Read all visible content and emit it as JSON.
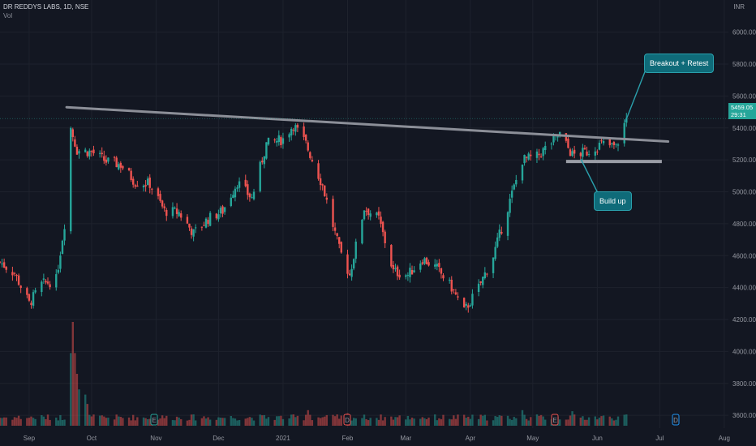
{
  "header": {
    "symbol": "DR REDDYS LABS, 1D, NSE",
    "indicator": "Vol",
    "currency": "INR"
  },
  "current_price": {
    "value": "5459.05",
    "countdown": "29:31"
  },
  "annotations": {
    "breakout": "Breakout + Retest",
    "buildup": "Build up"
  },
  "event_markers": [
    "E",
    "D",
    "E",
    "D"
  ],
  "colors": {
    "up": "#26a69a",
    "down": "#ef5350",
    "background": "#131722",
    "trendline": "#8c8f98",
    "callout": "#0f6b79"
  },
  "chart_data": {
    "type": "candlestick",
    "title": "",
    "xlabel": "",
    "ylabel": "",
    "ylim": [
      3550,
      6100
    ],
    "y_ticks": [
      "6000.00",
      "5800.00",
      "5600.00",
      "5400.00",
      "5200.00",
      "5000.00",
      "4800.00",
      "4600.00",
      "4400.00",
      "4200.00",
      "4000.00",
      "3800.00",
      "3600.00"
    ],
    "x_ticks": [
      "Sep",
      "Oct",
      "Nov",
      "Dec",
      "2021",
      "Feb",
      "Mar",
      "Apr",
      "May",
      "Jun",
      "Jul",
      "Aug"
    ],
    "x_tick_dates": [
      "2020-09-01",
      "2020-10-01",
      "2020-11-01",
      "2020-12-01",
      "2021-01-01",
      "2021-02-01",
      "2021-03-01",
      "2021-04-01",
      "2021-05-01",
      "2021-06-01",
      "2021-07-01",
      "2021-08-01"
    ],
    "x_range": [
      "2020-08-18",
      "2021-08-03"
    ],
    "close_anchors": [
      [
        "2020-08-18",
        4560
      ],
      [
        "2020-08-25",
        4490
      ],
      [
        "2020-09-01",
        4300
      ],
      [
        "2020-09-07",
        4420
      ],
      [
        "2020-09-14",
        4450
      ],
      [
        "2020-09-18",
        4800
      ],
      [
        "2020-09-21",
        5400
      ],
      [
        "2020-09-24",
        5260
      ],
      [
        "2020-10-01",
        5250
      ],
      [
        "2020-10-08",
        5190
      ],
      [
        "2020-10-15",
        5170
      ],
      [
        "2020-10-22",
        5060
      ],
      [
        "2020-10-29",
        5050
      ],
      [
        "2020-11-05",
        4880
      ],
      [
        "2020-11-12",
        4870
      ],
      [
        "2020-11-19",
        4740
      ],
      [
        "2020-11-26",
        4830
      ],
      [
        "2020-12-03",
        4880
      ],
      [
        "2020-12-10",
        5060
      ],
      [
        "2020-12-17",
        4960
      ],
      [
        "2020-12-24",
        5300
      ],
      [
        "2021-01-01",
        5330
      ],
      [
        "2021-01-06",
        5420
      ],
      [
        "2021-01-12",
        5300
      ],
      [
        "2021-01-20",
        5040
      ],
      [
        "2021-01-28",
        4640
      ],
      [
        "2021-02-02",
        4480
      ],
      [
        "2021-02-09",
        4900
      ],
      [
        "2021-02-16",
        4830
      ],
      [
        "2021-02-23",
        4500
      ],
      [
        "2021-03-02",
        4480
      ],
      [
        "2021-03-09",
        4580
      ],
      [
        "2021-03-16",
        4520
      ],
      [
        "2021-03-23",
        4400
      ],
      [
        "2021-03-29",
        4250
      ],
      [
        "2021-04-05",
        4400
      ],
      [
        "2021-04-12",
        4600
      ],
      [
        "2021-04-19",
        4900
      ],
      [
        "2021-04-26",
        5200
      ],
      [
        "2021-05-03",
        5220
      ],
      [
        "2021-05-10",
        5310
      ],
      [
        "2021-05-14",
        5360
      ],
      [
        "2021-05-20",
        5230
      ],
      [
        "2021-05-27",
        5250
      ],
      [
        "2021-06-03",
        5300
      ],
      [
        "2021-06-10",
        5280
      ],
      [
        "2021-06-15",
        5459
      ]
    ],
    "volume_peaks": [
      [
        "2020-09-22",
        1.0
      ],
      [
        "2020-09-24",
        0.5
      ],
      [
        "2020-09-28",
        0.3
      ],
      [
        "2021-01-13",
        0.15
      ],
      [
        "2021-02-01",
        0.12
      ],
      [
        "2021-04-26",
        0.15
      ],
      [
        "2021-05-20",
        0.14
      ],
      [
        "2021-06-15",
        0.05
      ]
    ],
    "trendline": {
      "start": [
        "2020-09-19",
        5530
      ],
      "end": [
        "2021-07-05",
        5315
      ]
    },
    "support_line": {
      "start": [
        "2021-05-17",
        5190
      ],
      "end": [
        "2021-07-02",
        5190
      ]
    },
    "price_line": 5459.05
  }
}
